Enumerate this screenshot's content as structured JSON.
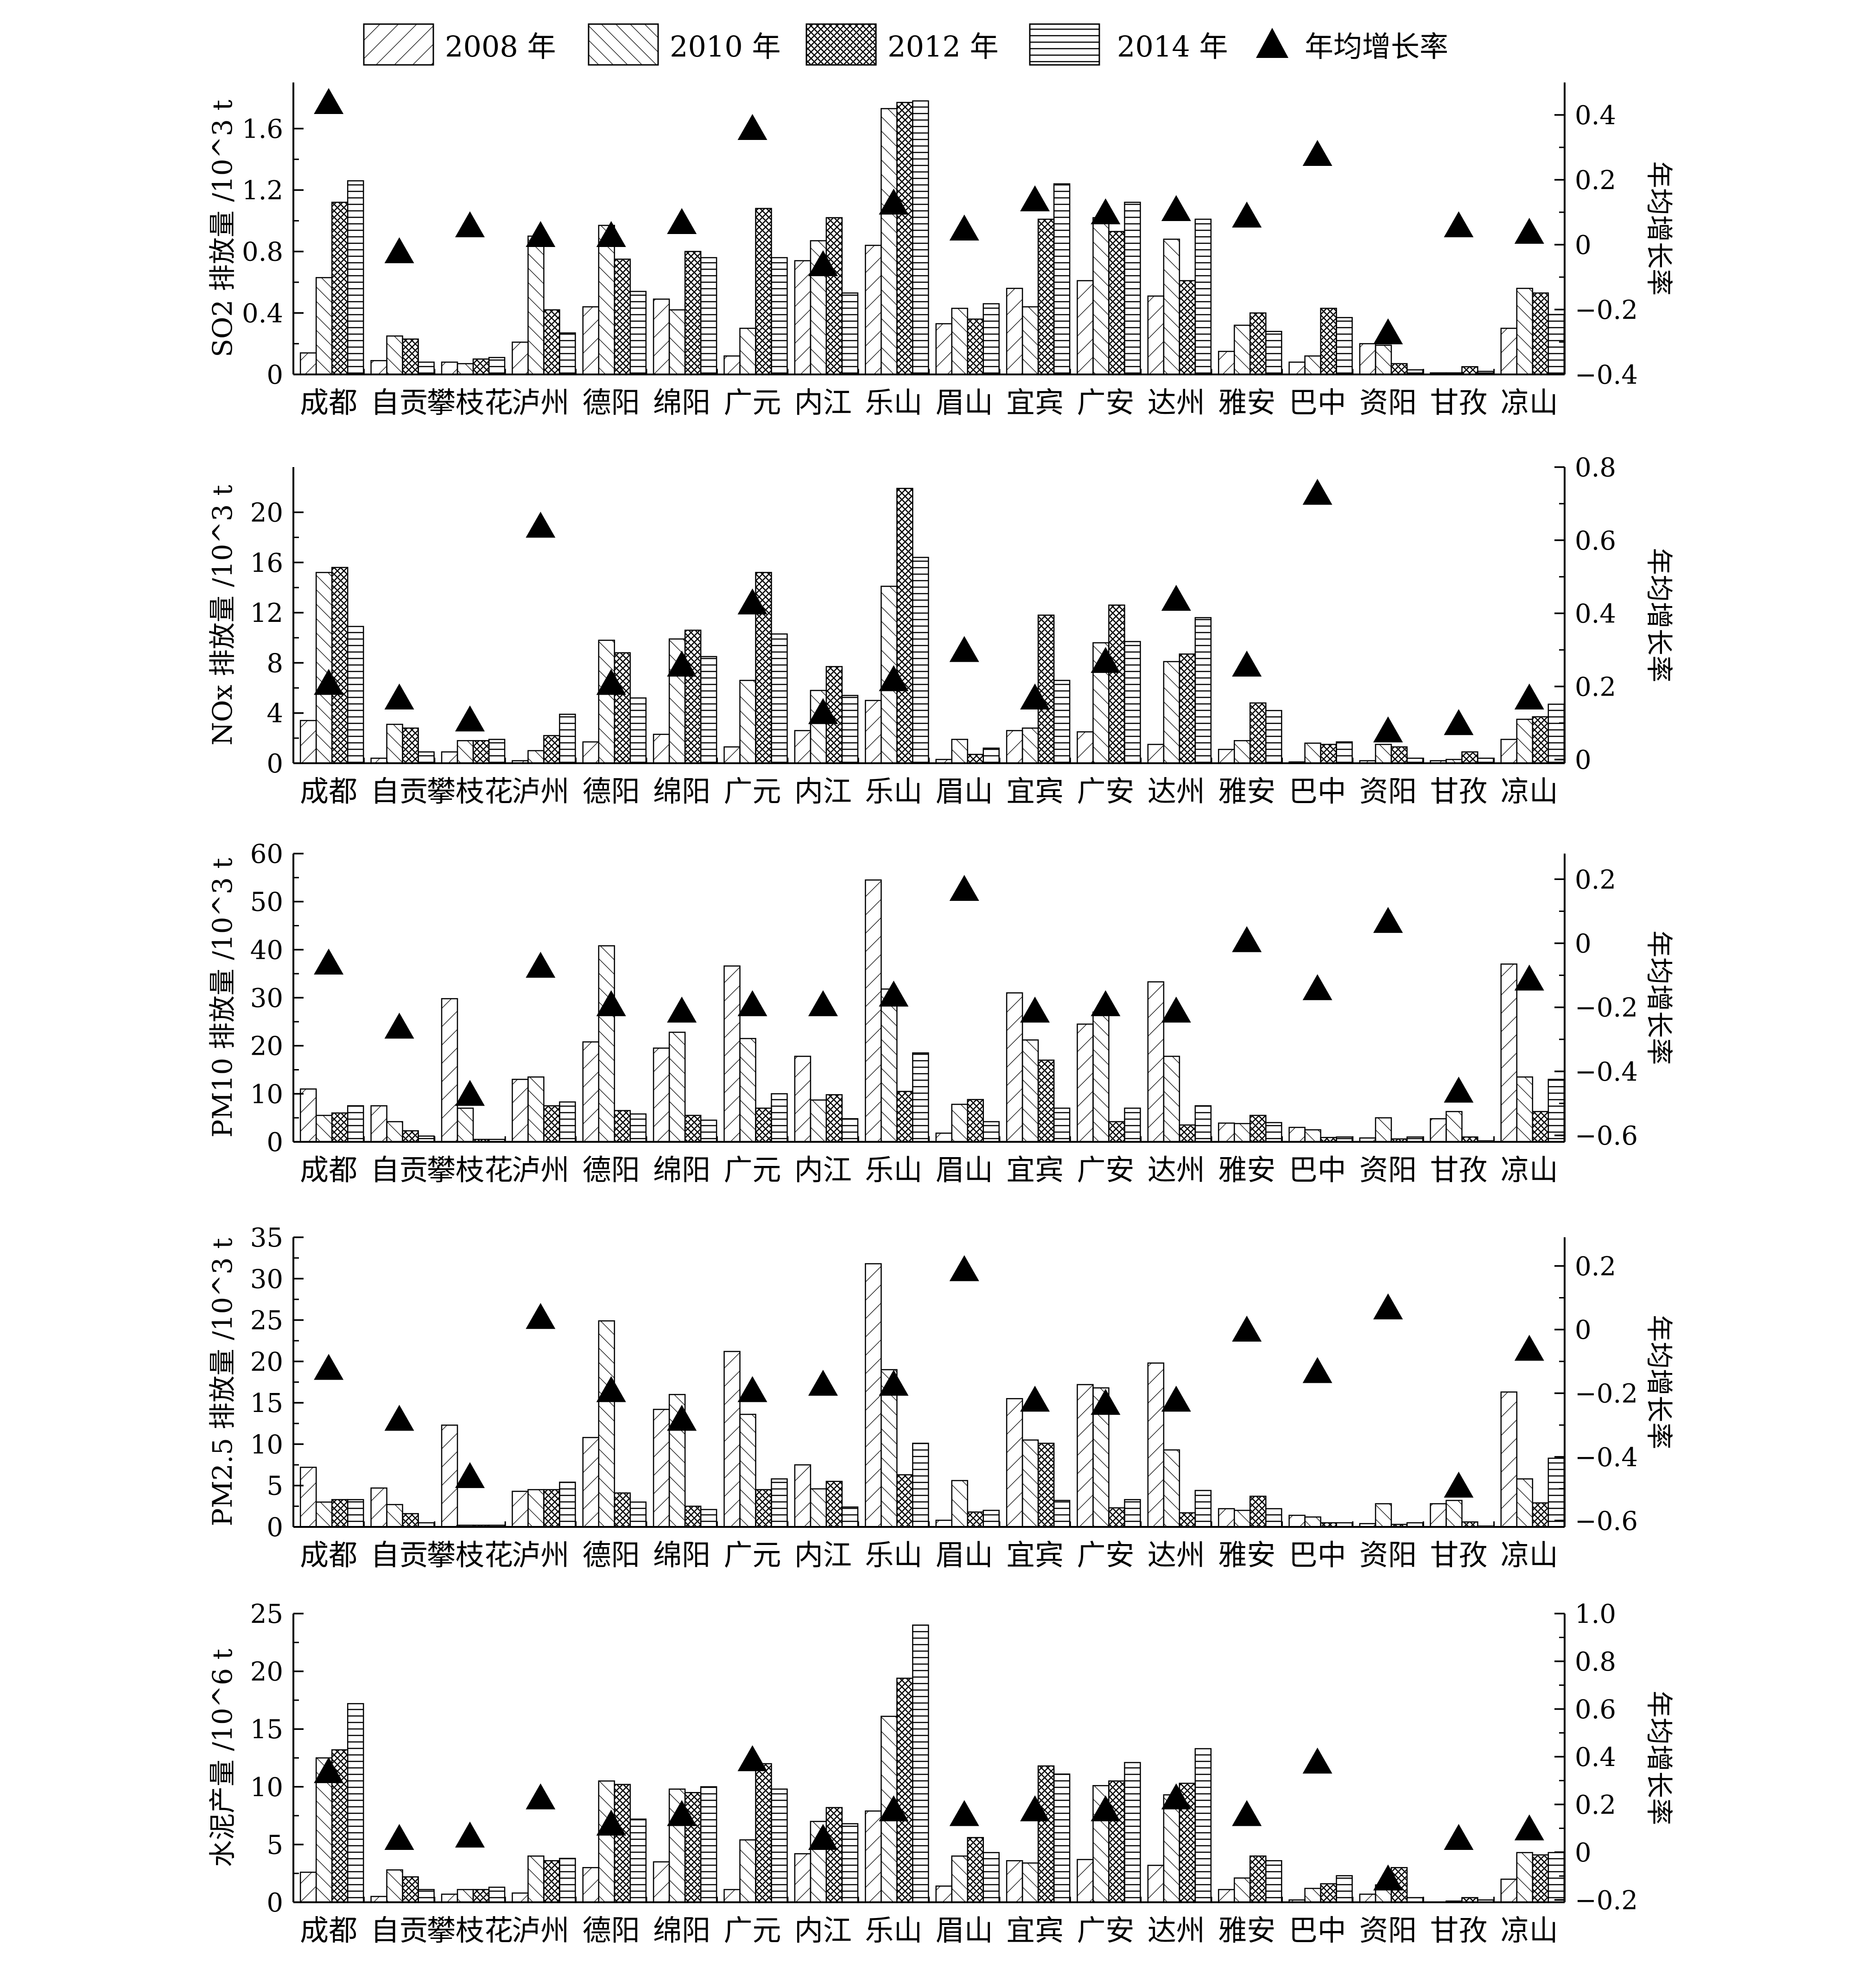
{
  "legend": {
    "items": [
      {
        "label": "2008 年",
        "pattern": "p2008"
      },
      {
        "label": "2010 年",
        "pattern": "p2010"
      },
      {
        "label": "2012 年",
        "pattern": "p2012"
      },
      {
        "label": "2014 年",
        "pattern": "p2014"
      },
      {
        "label": "年均增长率",
        "pattern": "triangle"
      }
    ]
  },
  "cities": [
    "成都",
    "自贡",
    "攀枝花",
    "泸州",
    "德阳",
    "绵阳",
    "广元",
    "内江",
    "乐山",
    "眉山",
    "宜宾",
    "广安",
    "达州",
    "雅安",
    "巴中",
    "资阳",
    "甘孜",
    "凉山"
  ],
  "chart_data": [
    {
      "type": "bar",
      "ylabel": "SO2 排放量 /10^3 t",
      "y2label": "年均增长率",
      "ylim": [
        0,
        1.9
      ],
      "yticks": [
        0,
        0.4,
        0.8,
        1.2,
        1.6
      ],
      "ytick_labels": [
        "0",
        "0.4",
        "0.8",
        "1.2",
        "1.6"
      ],
      "y2lim": [
        -0.4,
        0.5
      ],
      "y2ticks": [
        -0.4,
        -0.2,
        0,
        0.2,
        0.4
      ],
      "y2tick_labels": [
        "−0.4",
        "−0.2",
        "0",
        "0.2",
        "0.4"
      ],
      "series": [
        {
          "name": "2008 年",
          "values": [
            0.14,
            0.09,
            0.08,
            0.21,
            0.44,
            0.49,
            0.12,
            0.74,
            0.84,
            0.33,
            0.56,
            0.61,
            0.51,
            0.15,
            0.08,
            0.2,
            0.01,
            0.3
          ]
        },
        {
          "name": "2010 年",
          "values": [
            0.63,
            0.25,
            0.07,
            0.9,
            0.97,
            0.42,
            0.3,
            0.87,
            1.73,
            0.43,
            0.44,
            1.02,
            0.88,
            0.32,
            0.12,
            0.19,
            0.01,
            0.56
          ]
        },
        {
          "name": "2012 年",
          "values": [
            1.12,
            0.23,
            0.1,
            0.42,
            0.75,
            0.8,
            1.08,
            1.02,
            1.77,
            0.36,
            1.01,
            0.93,
            0.61,
            0.4,
            0.43,
            0.07,
            0.05,
            0.53
          ]
        },
        {
          "name": "2014 年",
          "values": [
            1.26,
            0.08,
            0.11,
            0.27,
            0.54,
            0.76,
            0.76,
            0.53,
            1.78,
            0.46,
            1.24,
            1.12,
            1.01,
            0.28,
            0.37,
            0.03,
            0.02,
            0.39
          ]
        }
      ],
      "growth_rate": [
        0.44,
        -0.02,
        0.06,
        0.03,
        0.03,
        0.07,
        0.36,
        -0.06,
        0.13,
        0.05,
        0.14,
        0.1,
        0.11,
        0.09,
        0.28,
        -0.27,
        0.06,
        0.04
      ]
    },
    {
      "type": "bar",
      "ylabel": "NOx 排放量 /10^3 t",
      "y2label": "年均增长率",
      "ylim": [
        0,
        23.6
      ],
      "yticks": [
        0,
        4,
        8,
        12,
        16,
        20
      ],
      "ytick_labels": [
        "0",
        "4",
        "8",
        "12",
        "16",
        "20"
      ],
      "y2lim": [
        -0.01,
        0.8
      ],
      "y2ticks": [
        0,
        0.2,
        0.4,
        0.6,
        0.8
      ],
      "y2tick_labels": [
        "0",
        "0.2",
        "0.4",
        "0.6",
        "0.8"
      ],
      "series": [
        {
          "name": "2008 年",
          "values": [
            3.4,
            0.4,
            0.9,
            0.2,
            1.7,
            2.3,
            1.3,
            2.6,
            5.0,
            0.3,
            2.6,
            2.5,
            1.5,
            1.1,
            0.1,
            0.2,
            0.2,
            1.9
          ]
        },
        {
          "name": "2010 年",
          "values": [
            15.2,
            3.1,
            1.8,
            1.0,
            9.8,
            9.9,
            6.6,
            5.8,
            14.1,
            1.9,
            2.8,
            9.6,
            8.1,
            1.8,
            1.6,
            1.5,
            0.3,
            3.5
          ]
        },
        {
          "name": "2012 年",
          "values": [
            15.6,
            2.8,
            1.8,
            2.2,
            8.8,
            10.6,
            15.2,
            7.7,
            21.9,
            0.7,
            11.8,
            12.6,
            8.7,
            4.8,
            1.5,
            1.3,
            0.9,
            3.7
          ]
        },
        {
          "name": "2014 年",
          "values": [
            10.9,
            0.9,
            1.9,
            3.9,
            5.2,
            8.5,
            10.3,
            5.4,
            16.4,
            1.2,
            6.6,
            9.7,
            11.6,
            4.2,
            1.7,
            0.4,
            0.4,
            4.7
          ]
        }
      ],
      "growth_rate": [
        0.21,
        0.17,
        0.11,
        0.64,
        0.21,
        0.26,
        0.43,
        0.13,
        0.22,
        0.3,
        0.17,
        0.27,
        0.44,
        0.26,
        0.73,
        0.08,
        0.1,
        0.17
      ]
    },
    {
      "type": "bar",
      "ylabel": "PM10 排放量 /10^3 t",
      "y2label": "年均增长率",
      "ylim": [
        0,
        60
      ],
      "yticks": [
        0,
        10,
        20,
        30,
        40,
        50,
        60
      ],
      "ytick_labels": [
        "0",
        "10",
        "20",
        "30",
        "40",
        "50",
        "60"
      ],
      "y2lim": [
        -0.62,
        0.28
      ],
      "y2ticks": [
        -0.6,
        -0.4,
        -0.2,
        0,
        0.2
      ],
      "y2tick_labels": [
        "−0.6",
        "−0.4",
        "−0.2",
        "0",
        "0.2"
      ],
      "series": [
        {
          "name": "2008 年",
          "values": [
            11.0,
            7.5,
            29.8,
            13.0,
            20.8,
            19.5,
            36.6,
            17.8,
            54.5,
            1.8,
            31.0,
            24.5,
            33.3,
            3.9,
            3.0,
            0.8,
            4.8,
            37.0
          ]
        },
        {
          "name": "2010 年",
          "values": [
            5.5,
            4.2,
            7.0,
            13.5,
            40.8,
            22.8,
            21.5,
            8.7,
            31.8,
            7.8,
            21.2,
            27.0,
            17.8,
            3.8,
            2.5,
            5.0,
            6.3,
            13.5
          ]
        },
        {
          "name": "2012 年",
          "values": [
            6.0,
            2.3,
            0.5,
            7.5,
            6.5,
            5.5,
            7.0,
            9.8,
            10.5,
            8.8,
            17.0,
            4.2,
            3.5,
            5.5,
            0.9,
            0.6,
            1.0,
            6.3
          ]
        },
        {
          "name": "2014 年",
          "values": [
            7.5,
            1.2,
            0.5,
            8.3,
            5.8,
            4.5,
            10.0,
            4.8,
            18.5,
            4.2,
            7.0,
            7.0,
            7.5,
            4.0,
            1.0,
            1.0,
            0.2,
            13.0
          ]
        }
      ],
      "growth_rate": [
        -0.06,
        -0.26,
        -0.47,
        -0.07,
        -0.19,
        -0.21,
        -0.19,
        -0.19,
        -0.16,
        0.17,
        -0.21,
        -0.19,
        -0.21,
        0.01,
        -0.14,
        0.07,
        -0.46,
        -0.11
      ]
    },
    {
      "type": "bar",
      "ylabel": "PM2.5 排放量 /10^3 t",
      "y2label": "年均增长率",
      "ylim": [
        0,
        35
      ],
      "yticks": [
        0,
        5,
        10,
        15,
        20,
        25,
        30,
        35
      ],
      "ytick_labels": [
        "0",
        "5",
        "10",
        "15",
        "20",
        "25",
        "30",
        "35"
      ],
      "y2lim": [
        -0.62,
        0.29
      ],
      "y2ticks": [
        -0.6,
        -0.4,
        -0.2,
        0,
        0.2
      ],
      "y2tick_labels": [
        "−0.6",
        "−0.4",
        "−0.2",
        "0",
        "0.2"
      ],
      "series": [
        {
          "name": "2008 年",
          "values": [
            7.2,
            4.7,
            12.3,
            4.3,
            10.8,
            14.2,
            21.2,
            7.5,
            31.8,
            0.8,
            15.5,
            17.2,
            19.8,
            2.2,
            1.4,
            0.4,
            2.8,
            16.3
          ]
        },
        {
          "name": "2010 年",
          "values": [
            3.0,
            2.7,
            0.2,
            4.5,
            24.9,
            16.0,
            13.6,
            4.6,
            19.0,
            5.6,
            10.5,
            16.8,
            9.3,
            2.0,
            1.2,
            2.8,
            3.2,
            5.8
          ]
        },
        {
          "name": "2012 年",
          "values": [
            3.3,
            1.6,
            0.2,
            4.5,
            4.1,
            2.5,
            4.5,
            5.5,
            6.3,
            1.8,
            10.1,
            2.3,
            1.7,
            3.7,
            0.5,
            0.3,
            0.6,
            2.9
          ]
        },
        {
          "name": "2014 年",
          "values": [
            3.3,
            0.5,
            0.2,
            5.4,
            3.0,
            2.1,
            5.8,
            2.4,
            10.1,
            2.0,
            3.2,
            3.3,
            4.4,
            2.2,
            0.5,
            0.5,
            0.1,
            8.3
          ]
        }
      ],
      "growth_rate": [
        -0.12,
        -0.28,
        -0.46,
        0.04,
        -0.19,
        -0.28,
        -0.19,
        -0.17,
        -0.17,
        0.19,
        -0.22,
        -0.23,
        -0.22,
        0.0,
        -0.13,
        0.07,
        -0.49,
        -0.06
      ]
    },
    {
      "type": "bar",
      "ylabel": "水泥产量 /10^6 t",
      "y2label": "年均增长率",
      "ylim": [
        0,
        25
      ],
      "yticks": [
        0,
        5,
        10,
        15,
        20,
        25
      ],
      "ytick_labels": [
        "0",
        "5",
        "10",
        "15",
        "20",
        "25"
      ],
      "y2lim": [
        -0.21,
        1.0
      ],
      "y2ticks": [
        -0.2,
        0,
        0.2,
        0.4,
        0.6,
        0.8,
        1.0
      ],
      "y2tick_labels": [
        "−0.2",
        "0",
        "0.2",
        "0.4",
        "0.6",
        "0.8",
        "1.0"
      ],
      "series": [
        {
          "name": "2008 年",
          "values": [
            2.6,
            0.5,
            0.7,
            0.8,
            3.0,
            3.5,
            1.1,
            4.2,
            7.9,
            1.4,
            3.6,
            3.7,
            3.2,
            1.1,
            0.2,
            0.7,
            0.0,
            2.0
          ]
        },
        {
          "name": "2010 年",
          "values": [
            12.5,
            2.8,
            1.1,
            4.0,
            10.5,
            9.8,
            5.4,
            7.0,
            16.1,
            4.0,
            3.4,
            10.1,
            9.3,
            2.1,
            1.2,
            1.5,
            0.1,
            4.3
          ]
        },
        {
          "name": "2012 年",
          "values": [
            13.2,
            2.2,
            1.1,
            3.6,
            10.2,
            9.5,
            12.0,
            8.2,
            19.4,
            5.6,
            11.8,
            10.5,
            10.3,
            4.0,
            1.6,
            3.0,
            0.4,
            4.1
          ]
        },
        {
          "name": "2014 年",
          "values": [
            17.2,
            1.1,
            1.3,
            3.8,
            7.2,
            10.0,
            9.8,
            6.8,
            24.0,
            4.3,
            11.1,
            12.1,
            13.3,
            3.6,
            2.3,
            0.4,
            0.2,
            4.3
          ]
        }
      ],
      "growth_rate": [
        0.34,
        0.06,
        0.07,
        0.23,
        0.12,
        0.16,
        0.39,
        0.06,
        0.18,
        0.16,
        0.18,
        0.18,
        0.23,
        0.16,
        0.38,
        -0.11,
        0.06,
        0.1
      ]
    }
  ]
}
